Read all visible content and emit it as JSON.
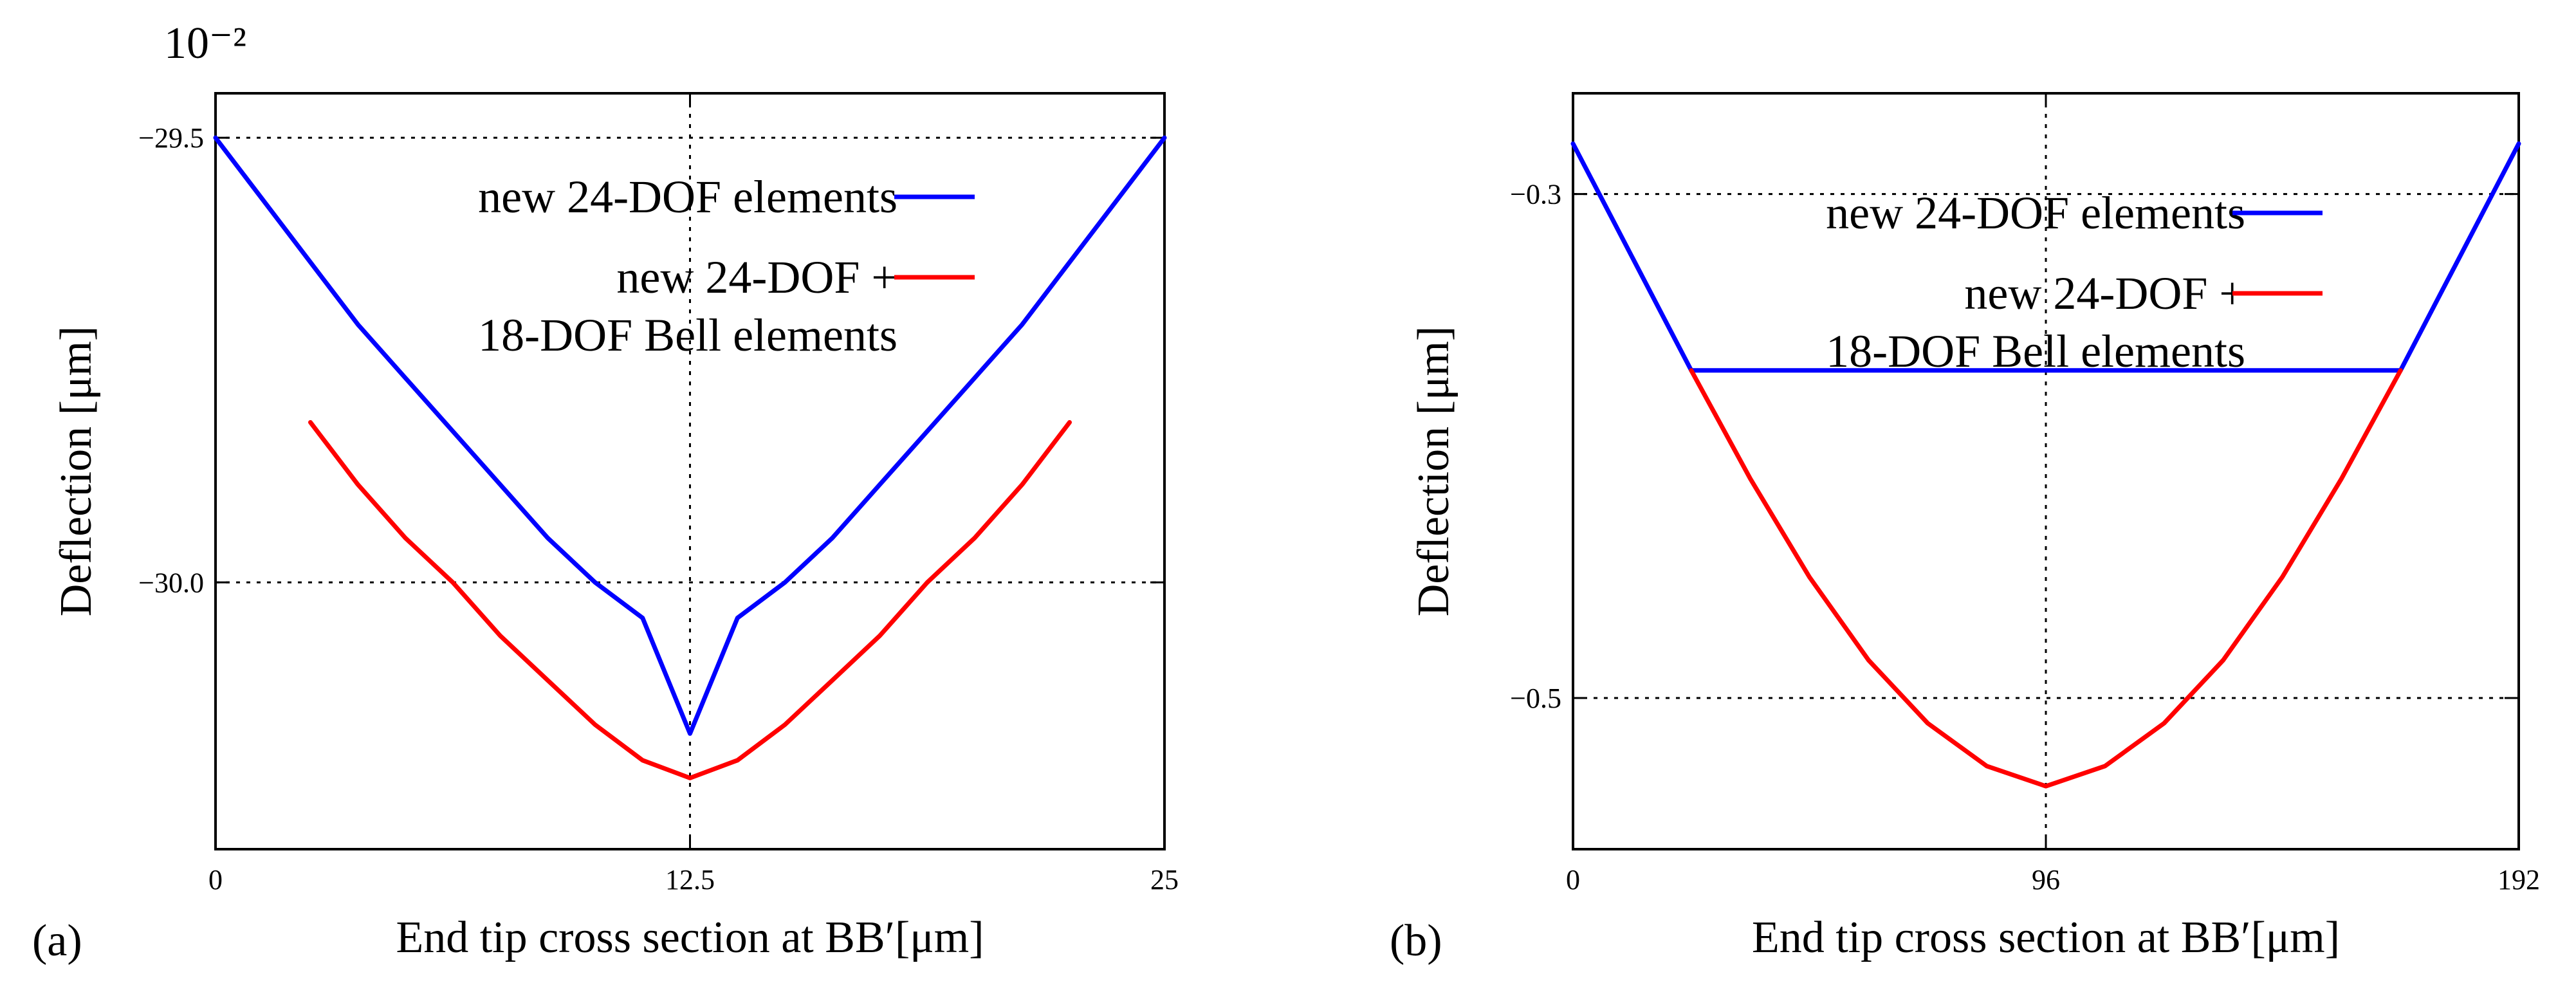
{
  "chart_data": [
    {
      "id": "a",
      "type": "line",
      "panel_label": "(a)",
      "exponent_label": "10⁻²",
      "xlabel": "End tip cross section at BB′[μm]",
      "ylabel": "Deflection [μm]",
      "xlim": [
        0,
        25
      ],
      "ylim": [
        -30.3,
        -29.45
      ],
      "xticks": [
        {
          "value": 0,
          "label": "0"
        },
        {
          "value": 12.5,
          "label": "12.5"
        },
        {
          "value": 25,
          "label": "25"
        }
      ],
      "yticks": [
        {
          "value": -29.5,
          "label": "−29.5"
        },
        {
          "value": -30.0,
          "label": "−30.0"
        }
      ],
      "grid": true,
      "legend": [
        {
          "lines": [
            "new 24-DOF elements"
          ],
          "color": "#0000ff"
        },
        {
          "lines": [
            "new 24-DOF +",
            "18-DOF Bell elements"
          ],
          "color": "#ff0000"
        }
      ],
      "series": [
        {
          "name": "new 24-DOF elements",
          "color": "#0000ff",
          "points": [
            [
              0,
              -29.5
            ],
            [
              1.25,
              -29.57
            ],
            [
              2.5,
              -29.64
            ],
            [
              3.75,
              -29.71
            ],
            [
              5,
              -29.77
            ],
            [
              6.25,
              -29.83
            ],
            [
              7.5,
              -29.89
            ],
            [
              8.75,
              -29.95
            ],
            [
              10,
              -30.0
            ],
            [
              11.25,
              -30.04
            ],
            [
              12.5,
              -30.17
            ],
            [
              13.75,
              -30.04
            ],
            [
              15,
              -30.0
            ],
            [
              16.25,
              -29.95
            ],
            [
              17.5,
              -29.89
            ],
            [
              18.75,
              -29.83
            ],
            [
              20,
              -29.77
            ],
            [
              21.25,
              -29.71
            ],
            [
              22.5,
              -29.64
            ],
            [
              23.75,
              -29.57
            ],
            [
              25,
              -29.5
            ]
          ]
        },
        {
          "name": "new 24-DOF + 18-DOF Bell elements",
          "color": "#ff0000",
          "points": [
            [
              2.5,
              -29.82
            ],
            [
              3.75,
              -29.89
            ],
            [
              5,
              -29.95
            ],
            [
              6.25,
              -30.0
            ],
            [
              7.5,
              -30.06
            ],
            [
              8.75,
              -30.11
            ],
            [
              10,
              -30.16
            ],
            [
              11.25,
              -30.2
            ],
            [
              12.5,
              -30.22
            ],
            [
              13.75,
              -30.2
            ],
            [
              15,
              -30.16
            ],
            [
              16.25,
              -30.11
            ],
            [
              17.5,
              -30.06
            ],
            [
              18.75,
              -30.0
            ],
            [
              20,
              -29.95
            ],
            [
              21.25,
              -29.89
            ],
            [
              22.5,
              -29.82
            ]
          ]
        }
      ]
    },
    {
      "id": "b",
      "type": "line",
      "panel_label": "(b)",
      "xlabel": "End tip cross section at BB′[μm]",
      "ylabel": "Deflection [μm]",
      "xlim": [
        0,
        192
      ],
      "ylim": [
        -0.56,
        -0.26
      ],
      "xticks": [
        {
          "value": 0,
          "label": "0"
        },
        {
          "value": 96,
          "label": "96"
        },
        {
          "value": 192,
          "label": "192"
        }
      ],
      "yticks": [
        {
          "value": -0.3,
          "label": "−0.3"
        },
        {
          "value": -0.5,
          "label": "−0.5"
        }
      ],
      "grid": true,
      "legend": [
        {
          "lines": [
            "new 24-DOF elements"
          ],
          "color": "#0000ff"
        },
        {
          "lines": [
            "new 24-DOF +",
            "18-DOF Bell elements"
          ],
          "color": "#ff0000"
        }
      ],
      "series": [
        {
          "name": "new 24-DOF elements",
          "color": "#0000ff",
          "points": [
            [
              0,
              -0.28
            ],
            [
              8,
              -0.31
            ],
            [
              16,
              -0.34
            ],
            [
              24,
              -0.37
            ],
            [
              168,
              -0.37
            ],
            [
              176,
              -0.34
            ],
            [
              184,
              -0.31
            ],
            [
              192,
              -0.28
            ]
          ]
        },
        {
          "name": "new 24-DOF + 18-DOF Bell elements",
          "color": "#ff0000",
          "points": [
            [
              24,
              -0.37
            ],
            [
              36,
              -0.413
            ],
            [
              48,
              -0.452
            ],
            [
              60,
              -0.485
            ],
            [
              72,
              -0.51
            ],
            [
              84,
              -0.527
            ],
            [
              96,
              -0.535
            ],
            [
              108,
              -0.527
            ],
            [
              120,
              -0.51
            ],
            [
              132,
              -0.485
            ],
            [
              144,
              -0.452
            ],
            [
              156,
              -0.413
            ],
            [
              168,
              -0.37
            ]
          ]
        }
      ]
    }
  ]
}
